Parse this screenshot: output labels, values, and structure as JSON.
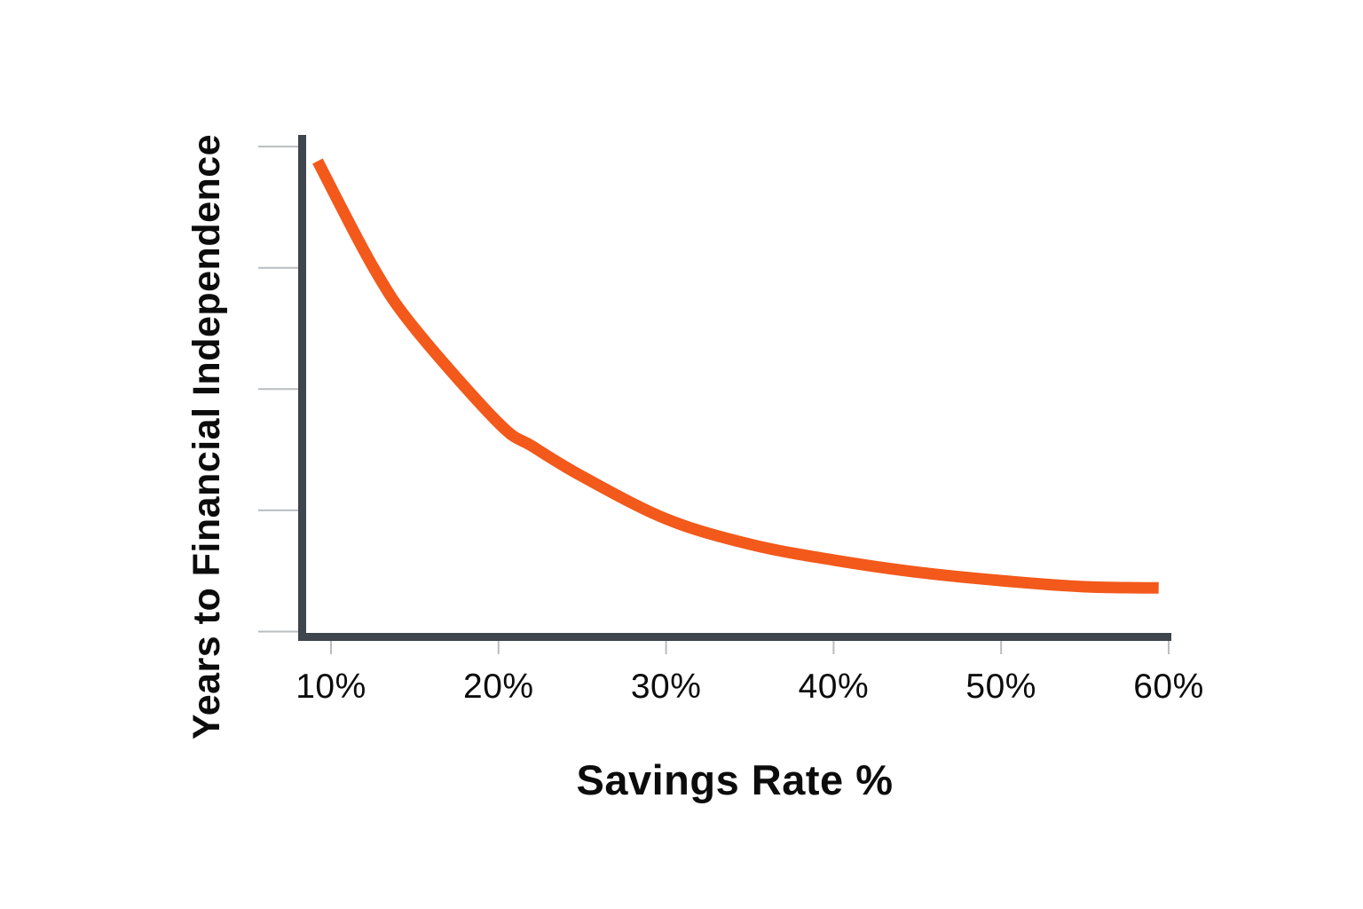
{
  "page": {
    "background": "#ffffff"
  },
  "chart_data": {
    "type": "line",
    "title": "",
    "xlabel": "Savings Rate %",
    "ylabel": "Years to Financial Independence",
    "x_ticks": [
      {
        "label": "10%",
        "value": 10
      },
      {
        "label": "20%",
        "value": 20
      },
      {
        "label": "30%",
        "value": 30
      },
      {
        "label": "40%",
        "value": 40
      },
      {
        "label": "50%",
        "value": 50
      },
      {
        "label": "60%",
        "value": 60
      }
    ],
    "y_axis": {
      "tick_labels_shown": false,
      "tick_count": 5,
      "tick_positions_units": [
        0,
        1,
        2,
        3,
        4
      ],
      "note_units": "y-axis ticks are unlabeled; 1 unit = spacing between adjacent ticks"
    },
    "xlim": [
      8,
      60.3
    ],
    "ylim_units": [
      0,
      4.15
    ],
    "grid": false,
    "legend": false,
    "series": [
      {
        "name": "years-to-financial-independence-curve",
        "color": "#F2591B",
        "stroke_width": 13,
        "points": [
          [
            9.2,
            3.88
          ],
          [
            12.5,
            3.01
          ],
          [
            15,
            2.5
          ],
          [
            20,
            1.72
          ],
          [
            22,
            1.53
          ],
          [
            25,
            1.28
          ],
          [
            30,
            0.93
          ],
          [
            35,
            0.72
          ],
          [
            40,
            0.59
          ],
          [
            45,
            0.49
          ],
          [
            50,
            0.42
          ],
          [
            55,
            0.37
          ],
          [
            59.4,
            0.36
          ]
        ]
      }
    ],
    "colors": {
      "curve": "#F2591B",
      "axis": "#3E454D",
      "ticks": "#B9BDBF",
      "text": "#0C0C0C"
    }
  }
}
